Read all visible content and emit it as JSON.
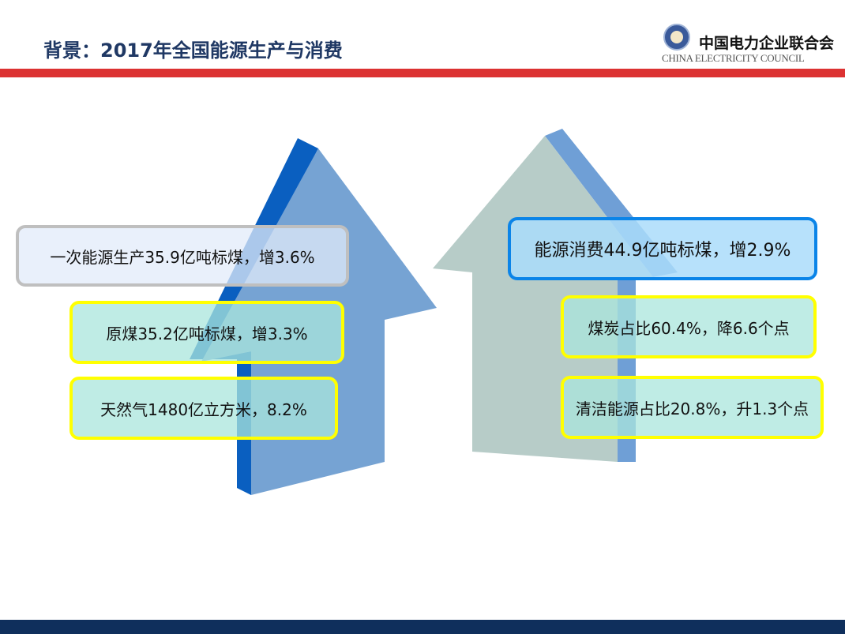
{
  "header": {
    "title": "背景：2017年全国能源生产与消费",
    "logo_cn": "中国电力企业联合会",
    "logo_en": "CHINA ELECTRICITY COUNCIL"
  },
  "production": {
    "main": "一次能源生产35.9亿吨标煤，增3.6%",
    "coal": "原煤35.2亿吨标煤，增3.3%",
    "gas": "天然气1480亿立方米，8.2%"
  },
  "consumption": {
    "main": "能源消费44.9亿吨标煤，增2.9%",
    "coal": "煤炭占比60.4%，降6.6个点",
    "clean": "清洁能源占比20.8%，升1.3个点"
  },
  "colors": {
    "accent_red": "#dc3232",
    "navy": "#0f2f5c",
    "box_yellow": "#ffff00",
    "box_blue": "#0a84e8"
  }
}
